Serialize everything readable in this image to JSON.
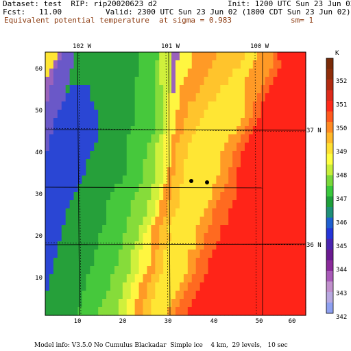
{
  "header": {
    "dataset_line": "Dataset: test  RIP: rip20020623 d2",
    "init_line": "Init: 1200 UTC Sun 23 Jun 02",
    "fcst_line": "Fcst:   11.00",
    "valid_line": "Valid: 2300 UTC Sun 23 Jun 02 (1800 CDT Sun 23 Jun 02)",
    "field_name": "Equivalent potential temperature",
    "sigma_text": "at sigma = 0.983",
    "sm_text": "sm= 1"
  },
  "colorbar": {
    "unit": "K",
    "labels": [
      "352",
      "351",
      "350",
      "349",
      "348",
      "347",
      "346",
      "345",
      "344",
      "343",
      "342"
    ],
    "colors": [
      "#7a2b08",
      "#8f2d0a",
      "#b22a10",
      "#dd2a1a",
      "#ff2a1a",
      "#ff5a1e",
      "#ff8a22",
      "#ffb82a",
      "#ffe032",
      "#ffff40",
      "#c8ee3a",
      "#7ad83a",
      "#3ac83c",
      "#1e9f3a",
      "#1f8f78",
      "#1e5fd0",
      "#2435d8",
      "#4a24b0",
      "#6a1a90",
      "#8a2a9a",
      "#a85ab8",
      "#c090cc",
      "#b8a8e0",
      "#8ea0f0"
    ]
  },
  "longitudes": [
    "102 W",
    "101 W",
    "100 W"
  ],
  "latitudes": [
    "37 N",
    "36 N"
  ],
  "x_axis_ticks": [
    "10",
    "20",
    "30",
    "40",
    "50",
    "60"
  ],
  "y_axis_ticks": [
    "10",
    "20",
    "30",
    "40",
    "50",
    "60"
  ],
  "footer": "Model info: V3.5.0 No Cumulus Blackadar  Simple ice    4 km,  29 levels,   10 sec",
  "map_cells": [
    "vvvupppooooooooooooooooqqqqqsssuutttxxxxxxwwwwwwwvvvxxxxyzzzzzzz",
    "vvuppppooooooooooooooooqqqqrsssuttttxxxxxwwwwwwwvvvxxxxxyyzzzzzz",
    "vuppppoooooooooooooooooqqqqrsssutttxxxxxwwwwwwvvvvxxxxxyyzzzzzzz",
    "uuppppooooooooooooooooqqqqqrsssuttxxxxxwwwwwwvvvvxxxxxyyzzzzzzzz",
    "upppponnnnnoooooooooooqqqqqrrssutxxxxxwwwwwvvvvvvxxxxyyzzzzzzzzz",
    "uppppnnnnnnoooooooooooqqqqqrrstttxxxxwwwwwvvvvvvvxxxyyzzzzzzzzzz",
    "ppppnnnnnnnnooooooooooqqqqqrrstttxxwwwwwvvvvvvvvvxxyyzzzzzzzzzzz",
    "pppnnnnnnnnnnoooooooooqqqqqrrsttxxxwwwwvvvvvvvvvvxxyyzzzzzzzzzzz",
    "ppnnnnnnnnnnnoooooooooqqqqqrrsttxxwwwwvvvvvvvvvvxxyyzzzzzzzzzzzz",
    "ppnnnnnnnnnnnooooooooqqqqqqrrsttxxwwwvvvvvvvvvvxxyyzzzzzzzzzzzzz",
    "pnnnnnnnnnnnnoooooooqqqqqqrrsttxxwwwvvvvvvvvvxxxyyzzzzzzzzzzzzzz",
    "pnnnnnnnnnnnooooooooqqqqqrrssttxwwwvvvvvvvvvxxxyyzzzzzzzzzzzzzzz",
    "nnnnnnnnnnnoooooooooqqqqqrrssttxwwwvvvvvvvvxxxyyzzzzzzzzzzzzzzzz",
    "nnnnnnnnnnooooooooooqqqqrrrssttxwwvvvvvvvvvxxxyyzzzzzzzzzzzzzzzz",
    "nnnnnnnnnnooooooooooqqqqrrrsstxxwwvvvvvvvvvxxyyzzzzzzzzzzzzzzzzz",
    "nnnnnnnnnooooooooooqqqqqrrrsstxwwwvvvvvvvvxxxyyzzzzzzzzzzzzzzzzz",
    "nnnnnnnnoooooooooqqqqqqrrrsstxxwwvvvvvvvvxxxyyyzzzzzzzzzzzzzzzzz",
    "nnnnnnnoooooooooqqqqqqrrrrsstxxwwvvvvvvvvxxyyyyzzzzzzzzzzzzzzzzz",
    "nnnnnnoooooooooqqqqqqrrrrsstxxwwwvvvvvvvxxyyyyzzzzzzzzzzzzzzzzzz",
    "nnnnnooooooooooqqqqqqrrrrsstxxwwvvvvvvvxxyyyyzzzzzzzzzzzzzzzzzzz",
    "nnnnnooooooooooqqqqqrrrrsstxxwwvvvvvvvxxxyyyyzzzzzzzzzzzzzzzzzzz",
    "nnnnooooooooooqqqqqqrrrsstxxwwvvvvvvvxxxyyyzzzzzzzzzzzzzzzzzzzzz",
    "nnnnoooooooooqqqqqqrrrrsttxxwwwvvvvvvxxyyyyzzzzzzzzzzzzzzzzzzzzz",
    "nnnooooooooooqqqqqqrrrssttxxwwvvvvvvvxxyyyzzzzzzzzzzzzzzzzzzzzzz",
    "nnnoooooooooqqqqqqrrrsstttxwwvvvvvvxxxyyyzzzzzzzzzzzzzzzzzzzzzzz",
    "nnooooooooooqqqqqqrrrsstttxwwvvvvvvxxyyyzzzzzzzzzzzzzzzzzzzzzzzz",
    "nnoooooooooqqqqqqrrrrssttxxwwvvvvvvxxyyyzzzzzzzzzzzzzzzzzzzzzzzz",
    "noooooooooqqqqqqrrrrssttxxwwvvvvvvxxyyyzzzzzzzzzzzzzzzzzzzzzzzzz",
    "noooooooooqqqqqqrrrssttxxwwvvvvvvxxyyyzzzzzzzzzzzzzzzzzzzzzzzzzz",
    "oooooooooqqqqqqrrrrssttxxwwvvvvvxxyyyzzzzzzzzzzzzzzzzzzzzzzzzzzz",
    "oooooooooqqqqqrrrrssttxxwwvvvvvxxyyyzzzzzzzzzzzzzzzzzzzzzzzzzzzz",
    "ooooooooqqqqqrrrrrssttxxwwvvvvxxyyyzzzzzzzzzzzzzzzzzzzzzzzzzzzzz"
  ]
}
